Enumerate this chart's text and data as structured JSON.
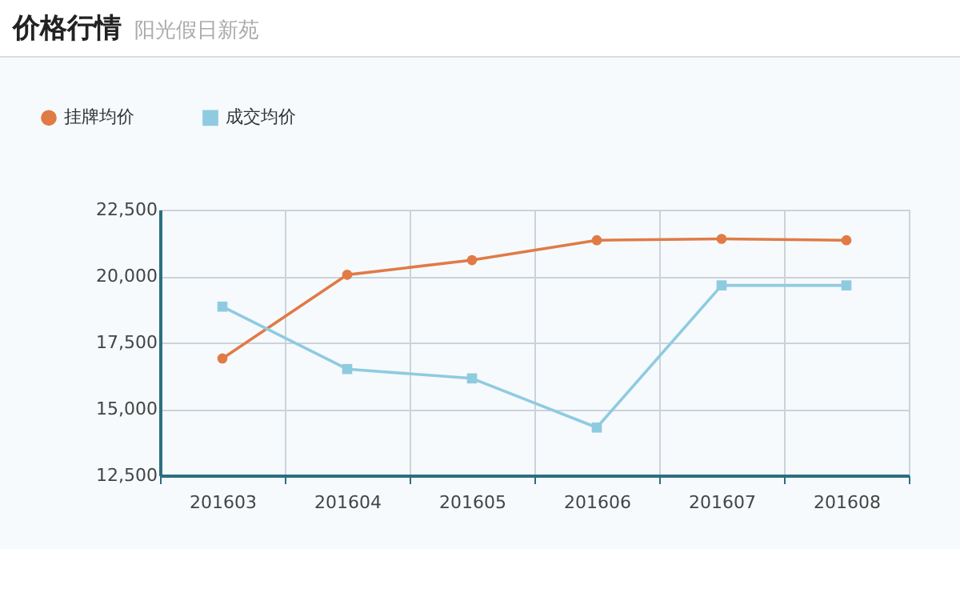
{
  "chart_data": {
    "type": "line",
    "title": "价格行情",
    "subtitle": "阳光假日新苑",
    "categories": [
      "201603",
      "201604",
      "201605",
      "201606",
      "201607",
      "201608"
    ],
    "series": [
      {
        "name": "挂牌均价",
        "color": "#e07b46",
        "marker": "circle",
        "values": [
          16900,
          20050,
          20600,
          21350,
          21400,
          21350
        ]
      },
      {
        "name": "成交均价",
        "color": "#8fcbe0",
        "marker": "square",
        "values": [
          18850,
          16500,
          16150,
          14300,
          19650,
          19650
        ]
      }
    ],
    "ylim": [
      12500,
      22500
    ],
    "yticks": [
      {
        "value": 12500,
        "label": "12,500"
      },
      {
        "value": 15000,
        "label": "15,000"
      },
      {
        "value": 17500,
        "label": "17,500"
      },
      {
        "value": 20000,
        "label": "20,000"
      },
      {
        "value": 22500,
        "label": "22,500"
      }
    ],
    "grid": true,
    "legend": "top left",
    "line_style": "solid"
  }
}
